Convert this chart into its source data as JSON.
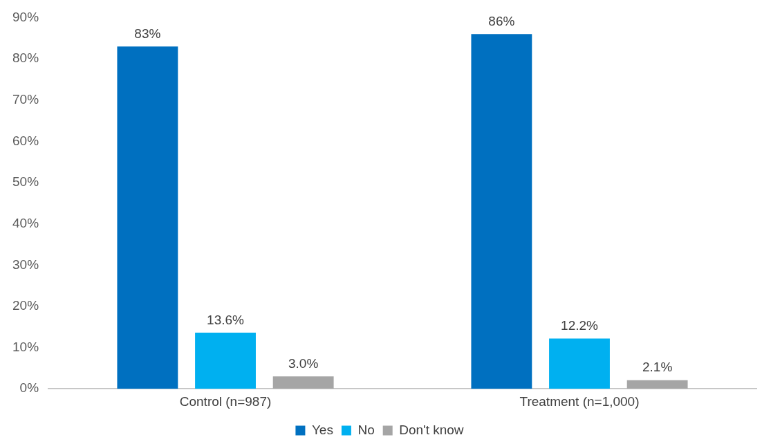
{
  "chart_data": {
    "type": "bar",
    "categories": [
      "Control (n=987)",
      "Treatment (n=1,000)"
    ],
    "series": [
      {
        "name": "Yes",
        "color": "#0070c0",
        "values": [
          83,
          86
        ],
        "value_labels": [
          "83%",
          "86%"
        ]
      },
      {
        "name": "No",
        "color": "#00b0f0",
        "values": [
          13.6,
          12.2
        ],
        "value_labels": [
          "13.6%",
          "12.2%"
        ]
      },
      {
        "name": "Don't know",
        "color": "#a5a5a5",
        "values": [
          3.0,
          2.1
        ],
        "value_labels": [
          "3.0%",
          "2.1%"
        ]
      }
    ],
    "ylim": [
      0,
      90
    ],
    "yticks": [
      {
        "value": 0,
        "label": "0%"
      },
      {
        "value": 10,
        "label": "10%"
      },
      {
        "value": 20,
        "label": "20%"
      },
      {
        "value": 30,
        "label": "30%"
      },
      {
        "value": 40,
        "label": "40%"
      },
      {
        "value": 50,
        "label": "50%"
      },
      {
        "value": 60,
        "label": "60%"
      },
      {
        "value": 70,
        "label": "70%"
      },
      {
        "value": 80,
        "label": "80%"
      },
      {
        "value": 90,
        "label": "90%"
      }
    ],
    "grid": false,
    "legend": "bottom"
  }
}
